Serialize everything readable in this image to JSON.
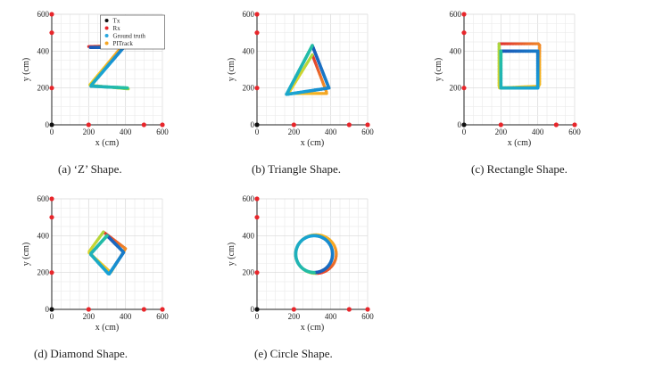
{
  "legend": {
    "entries": [
      {
        "label": "Tx",
        "color": "#111111"
      },
      {
        "label": "Rx",
        "color": "#e8262b"
      },
      {
        "label": "Ground truth",
        "color": "#2aa7de"
      },
      {
        "label": "PITrack",
        "color": "#f5a623"
      }
    ]
  },
  "colors": {
    "tx": "#111111",
    "rx": "#e8262b",
    "ground_truth_gradient": [
      "#1a58b8",
      "#18a0d8",
      "#25c0a0"
    ],
    "pitrack_gradient": [
      "#e03030",
      "#f5a623",
      "#f0d020",
      "#a8d840"
    ]
  },
  "chart_data": [
    {
      "type": "scatter",
      "caption": "(a) ‘Z’ Shape.",
      "xlabel": "x (cm)",
      "ylabel": "y (cm)",
      "xlim": [
        0,
        600
      ],
      "ylim": [
        0,
        600
      ],
      "xticks": [
        "0",
        "200",
        "400",
        "600"
      ],
      "yticks": [
        "0",
        "200",
        "400",
        "600"
      ],
      "grid": true,
      "legend_position": "top-right",
      "tx": [
        [
          0,
          0
        ]
      ],
      "rx": [
        [
          0,
          600
        ],
        [
          0,
          500
        ],
        [
          0,
          200
        ],
        [
          200,
          0
        ],
        [
          500,
          0
        ],
        [
          600,
          0
        ]
      ],
      "ground_truth": [
        [
          210,
          420
        ],
        [
          390,
          420
        ],
        [
          210,
          210
        ],
        [
          410,
          200
        ]
      ],
      "pitrack": [
        [
          200,
          425
        ],
        [
          385,
          430
        ],
        [
          205,
          215
        ],
        [
          415,
          195
        ]
      ]
    },
    {
      "type": "scatter",
      "caption": "(b) Triangle Shape.",
      "xlabel": "x (cm)",
      "ylabel": "y (cm)",
      "xlim": [
        0,
        600
      ],
      "ylim": [
        0,
        600
      ],
      "xticks": [
        "0",
        "200",
        "400",
        "600"
      ],
      "yticks": [
        "0",
        "200",
        "400",
        "600"
      ],
      "grid": true,
      "rx": [
        [
          0,
          600
        ],
        [
          0,
          500
        ],
        [
          0,
          200
        ],
        [
          200,
          0
        ],
        [
          500,
          0
        ],
        [
          600,
          0
        ]
      ],
      "tx": [
        [
          0,
          0
        ]
      ],
      "ground_truth": [
        [
          300,
          430
        ],
        [
          390,
          200
        ],
        [
          160,
          165
        ],
        [
          300,
          430
        ]
      ],
      "pitrack": [
        [
          300,
          380
        ],
        [
          380,
          170
        ],
        [
          170,
          170
        ],
        [
          300,
          380
        ]
      ]
    },
    {
      "type": "scatter",
      "caption": "(c) Rectangle Shape.",
      "xlabel": "x (cm)",
      "ylabel": "y (cm)",
      "xlim": [
        0,
        600
      ],
      "ylim": [
        0,
        600
      ],
      "xticks": [
        "0",
        "200",
        "400",
        "600"
      ],
      "yticks": [
        "0",
        "200",
        "400",
        "600"
      ],
      "grid": true,
      "rx": [
        [
          0,
          600
        ],
        [
          0,
          500
        ],
        [
          0,
          200
        ],
        [
          200,
          0
        ],
        [
          500,
          0
        ],
        [
          600,
          0
        ]
      ],
      "tx": [
        [
          0,
          0
        ]
      ],
      "ground_truth": [
        [
          200,
          400
        ],
        [
          400,
          400
        ],
        [
          400,
          200
        ],
        [
          200,
          200
        ],
        [
          200,
          400
        ]
      ],
      "pitrack": [
        [
          190,
          440
        ],
        [
          410,
          440
        ],
        [
          410,
          210
        ],
        [
          190,
          200
        ],
        [
          190,
          440
        ]
      ]
    },
    {
      "type": "scatter",
      "caption": "(d) Diamond Shape.",
      "xlabel": "x (cm)",
      "ylabel": "y (cm)",
      "xlim": [
        0,
        600
      ],
      "ylim": [
        0,
        600
      ],
      "xticks": [
        "0",
        "200",
        "400",
        "600"
      ],
      "yticks": [
        "0",
        "200",
        "400",
        "600"
      ],
      "grid": true,
      "rx": [
        [
          0,
          600
        ],
        [
          0,
          500
        ],
        [
          0,
          200
        ],
        [
          200,
          0
        ],
        [
          500,
          0
        ],
        [
          600,
          0
        ]
      ],
      "tx": [
        [
          0,
          0
        ]
      ],
      "ground_truth": [
        [
          300,
          400
        ],
        [
          390,
          310
        ],
        [
          310,
          190
        ],
        [
          210,
          300
        ],
        [
          300,
          400
        ]
      ],
      "pitrack": [
        [
          280,
          420
        ],
        [
          400,
          330
        ],
        [
          320,
          200
        ],
        [
          200,
          310
        ],
        [
          280,
          420
        ]
      ]
    },
    {
      "type": "scatter",
      "caption": "(e) Circle Shape.",
      "xlabel": "x (cm)",
      "ylabel": "y (cm)",
      "xlim": [
        0,
        600
      ],
      "ylim": [
        0,
        600
      ],
      "xticks": [
        "0",
        "200",
        "400",
        "600"
      ],
      "yticks": [
        "0",
        "200",
        "400",
        "600"
      ],
      "grid": true,
      "rx": [
        [
          0,
          600
        ],
        [
          0,
          500
        ],
        [
          0,
          200
        ],
        [
          200,
          0
        ],
        [
          500,
          0
        ],
        [
          600,
          0
        ]
      ],
      "tx": [
        [
          0,
          0
        ]
      ],
      "ground_truth": {
        "center": [
          310,
          300
        ],
        "radius": [
          100,
          100
        ]
      },
      "pitrack": {
        "center": [
          320,
          300
        ],
        "radius": [
          110,
          105
        ]
      }
    }
  ]
}
